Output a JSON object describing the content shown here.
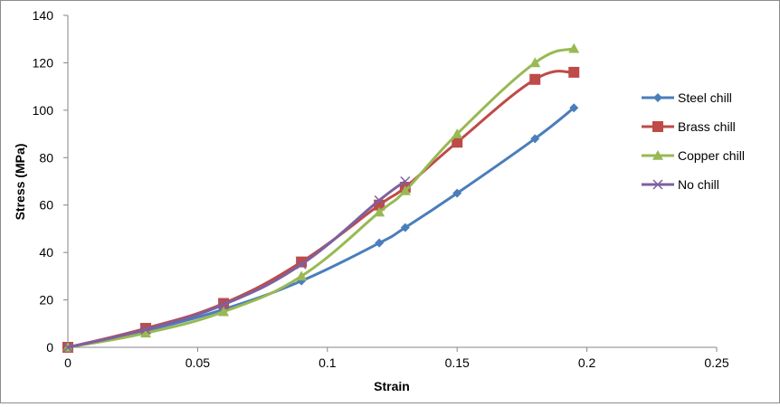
{
  "chart_data": {
    "type": "line",
    "title": "",
    "xlabel": "Strain",
    "ylabel": "Stress (MPa)",
    "xlim": [
      0,
      0.25
    ],
    "ylim": [
      0,
      140
    ],
    "x_ticks": [
      "0",
      "0.05",
      "0.1",
      "0.15",
      "0.2",
      "0.25"
    ],
    "y_ticks": [
      "0",
      "20",
      "40",
      "60",
      "80",
      "100",
      "120",
      "140"
    ],
    "grid": false,
    "legend_position": "right",
    "series": [
      {
        "name": "Steel chill",
        "color": "#4a7ebb",
        "marker": "diamond",
        "points": [
          [
            0,
            0
          ],
          [
            0.03,
            7
          ],
          [
            0.06,
            16
          ],
          [
            0.09,
            28
          ],
          [
            0.12,
            44
          ],
          [
            0.13,
            50.5
          ],
          [
            0.15,
            65
          ],
          [
            0.18,
            88
          ],
          [
            0.195,
            101
          ]
        ]
      },
      {
        "name": "Brass chill",
        "color": "#be4b48",
        "marker": "square",
        "points": [
          [
            0,
            0
          ],
          [
            0.03,
            8
          ],
          [
            0.06,
            18.5
          ],
          [
            0.09,
            36
          ],
          [
            0.12,
            60
          ],
          [
            0.13,
            67.5
          ],
          [
            0.15,
            86.5
          ],
          [
            0.18,
            113
          ],
          [
            0.195,
            116
          ]
        ]
      },
      {
        "name": "Copper chill",
        "color": "#98b954",
        "marker": "triangle",
        "points": [
          [
            0,
            0
          ],
          [
            0.03,
            6
          ],
          [
            0.06,
            15
          ],
          [
            0.09,
            30
          ],
          [
            0.12,
            57
          ],
          [
            0.13,
            66
          ],
          [
            0.15,
            90
          ],
          [
            0.18,
            120
          ],
          [
            0.195,
            126
          ]
        ]
      },
      {
        "name": "No chill",
        "color": "#7d60a0",
        "marker": "x",
        "points": [
          [
            0,
            0
          ],
          [
            0.03,
            7.5
          ],
          [
            0.06,
            18
          ],
          [
            0.09,
            35
          ],
          [
            0.12,
            62
          ],
          [
            0.13,
            70
          ]
        ]
      }
    ]
  }
}
